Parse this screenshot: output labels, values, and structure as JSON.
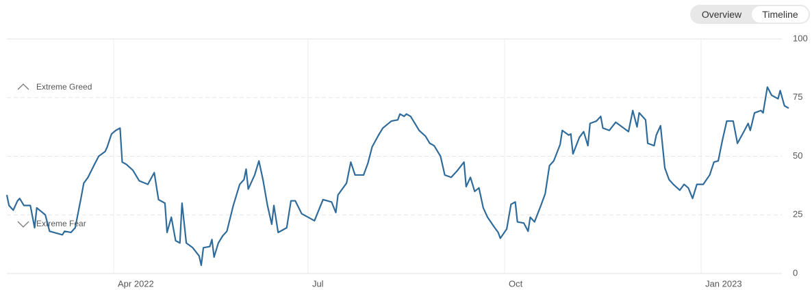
{
  "controls": [
    "Overview",
    "Timeline"
  ],
  "chart_data": {
    "type": "line",
    "annotations": [
      "Extreme Greed",
      "Extreme Fear"
    ],
    "x": [
      0,
      1,
      3,
      5,
      6,
      8,
      11,
      13,
      14,
      18,
      20,
      22,
      26,
      27,
      30,
      32,
      35,
      36,
      38,
      41,
      43,
      46,
      47,
      49,
      51,
      53,
      54,
      56,
      59,
      62,
      66,
      69,
      71,
      74,
      75,
      77,
      79,
      81,
      82,
      84,
      87,
      90,
      91,
      92,
      95,
      96,
      97,
      99,
      101,
      103,
      106,
      109,
      111,
      112,
      113,
      116,
      118,
      120,
      122,
      124,
      125,
      127,
      131,
      133,
      135,
      138,
      141,
      144,
      148,
      152,
      154,
      155,
      159,
      161,
      163,
      167,
      169,
      171,
      174,
      176,
      178,
      180,
      183,
      184,
      186,
      187,
      189,
      191,
      193,
      196,
      198,
      200,
      203,
      205,
      208,
      211,
      214,
      215,
      217,
      219,
      221,
      223,
      225,
      228,
      230,
      231,
      234,
      236,
      238,
      239,
      242,
      244,
      245,
      247,
      250,
      252,
      254,
      256,
      259,
      260,
      263,
      264,
      265,
      268,
      270,
      272,
      273,
      276,
      278,
      279,
      282,
      285,
      288,
      291,
      293,
      295,
      296,
      299,
      300,
      303,
      304,
      306,
      308,
      310,
      312,
      315,
      317,
      319,
      321,
      323,
      326,
      329,
      331,
      333,
      335,
      337,
      340,
      342,
      345,
      347,
      348,
      350,
      353,
      354,
      356,
      358,
      361,
      362,
      364,
      366
    ],
    "series": [
      {
        "name": null,
        "color": "#2f6b9a",
        "values": [
          33.5,
          29,
          27,
          31,
          32,
          29,
          29,
          19.5,
          28,
          25,
          18,
          17.5,
          16.5,
          18,
          17.5,
          19.5,
          33.5,
          38.5,
          41,
          46.5,
          50,
          52,
          54,
          59.5,
          61,
          62,
          47.5,
          46.5,
          44,
          39.5,
          38,
          43,
          31.5,
          30,
          17.5,
          24,
          14,
          13,
          30,
          13,
          11,
          7.5,
          3.5,
          11,
          11.5,
          14.5,
          7,
          13,
          16,
          18,
          29,
          38,
          40,
          44.5,
          36,
          42,
          48,
          39.5,
          29,
          21,
          29,
          17.5,
          19.5,
          31,
          31,
          25.5,
          24,
          22.5,
          31.5,
          30.5,
          26,
          33.5,
          38.5,
          47.5,
          42,
          42,
          47,
          54,
          59,
          62,
          63.5,
          65,
          65.5,
          68,
          67,
          68,
          67,
          64,
          61,
          58.5,
          55.5,
          54.5,
          50,
          42,
          41,
          44,
          47.5,
          37,
          41,
          35,
          36.5,
          28,
          24,
          20,
          17.5,
          15,
          19,
          29.5,
          30.5,
          22,
          21.5,
          18,
          24,
          22,
          29,
          34,
          46,
          48,
          55,
          61,
          59,
          59.5,
          51,
          58,
          60.5,
          54.5,
          64,
          65,
          67,
          62,
          61,
          64.5,
          62.5,
          60.5,
          69.5,
          62.5,
          68.5,
          65.5,
          55.5,
          54.5,
          59,
          63,
          45,
          40,
          38,
          35.5,
          38,
          36.5,
          32,
          38,
          38,
          42,
          47.5,
          48,
          57,
          65,
          65,
          55.5,
          60.5,
          64,
          61,
          68.5,
          69.5,
          68.5,
          79.5,
          76,
          74.5,
          78,
          71.5,
          70.5
        ]
      }
    ],
    "xlim": [
      0,
      366
    ],
    "xticks": [
      {
        "value": 50,
        "label": "Apr 2022"
      },
      {
        "value": 141,
        "label": "Jul"
      },
      {
        "value": 233,
        "label": "Oct"
      },
      {
        "value": 325,
        "label": "Jan 2023"
      }
    ],
    "ylim": [
      0,
      100
    ],
    "yticks": [
      0,
      25,
      50,
      75,
      100
    ],
    "grid": true
  }
}
